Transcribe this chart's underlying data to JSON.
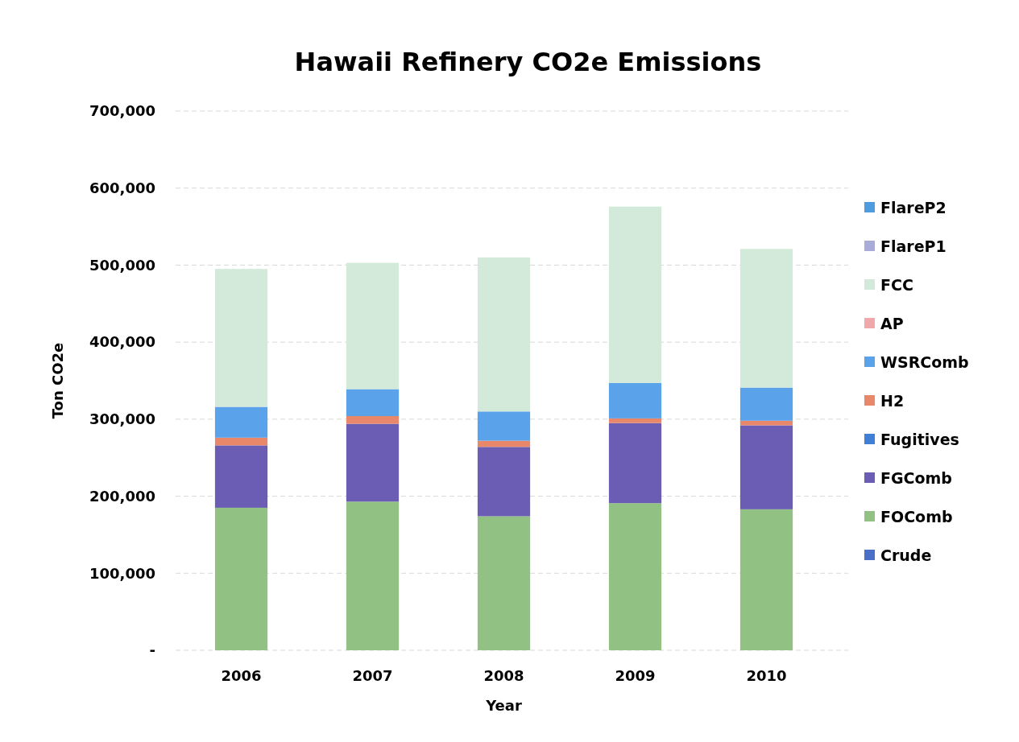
{
  "chart_data": {
    "type": "bar",
    "title": "Hawaii Refinery CO2e Emissions",
    "xlabel": "Year",
    "ylabel": "Ton CO2e",
    "categories": [
      "2006",
      "2007",
      "2008",
      "2009",
      "2010"
    ],
    "stacked": true,
    "ylim": [
      0,
      700000
    ],
    "yticks": [
      {
        "value": 0,
        "label": "-"
      },
      {
        "value": 100000,
        "label": "100,000"
      },
      {
        "value": 200000,
        "label": "200,000"
      },
      {
        "value": 300000,
        "label": "300,000"
      },
      {
        "value": 400000,
        "label": "400,000"
      },
      {
        "value": 500000,
        "label": "500,000"
      },
      {
        "value": 600000,
        "label": "600,000"
      },
      {
        "value": 700000,
        "label": "700,000"
      }
    ],
    "grid": "y",
    "legend": "right",
    "series": [
      {
        "name": "Crude",
        "color": "#4a6fc9",
        "values": [
          0,
          0,
          0,
          0,
          0
        ]
      },
      {
        "name": "FOComb",
        "color": "#92c184",
        "values": [
          185000,
          193000,
          174000,
          191000,
          183000
        ]
      },
      {
        "name": "FGComb",
        "color": "#6a5db3",
        "values": [
          81000,
          101000,
          90000,
          104000,
          109000
        ]
      },
      {
        "name": "Fugitives",
        "color": "#3f7fd6",
        "values": [
          0,
          0,
          0,
          0,
          0
        ]
      },
      {
        "name": "H2",
        "color": "#e8876a",
        "values": [
          10000,
          10000,
          8000,
          6000,
          6000
        ]
      },
      {
        "name": "WSRComb",
        "color": "#5aa2ea",
        "values": [
          40000,
          35000,
          38000,
          46000,
          43000
        ]
      },
      {
        "name": "AP",
        "color": "#f0a8ab",
        "values": [
          0,
          0,
          0,
          0,
          0
        ]
      },
      {
        "name": "FCC",
        "color": "#d3eadb",
        "values": [
          179000,
          164000,
          200000,
          229000,
          180000
        ]
      },
      {
        "name": "FlareP1",
        "color": "#a9acd8",
        "values": [
          0,
          0,
          0,
          0,
          0
        ]
      },
      {
        "name": "FlareP2",
        "color": "#4f9be0",
        "values": [
          0,
          0,
          0,
          0,
          0
        ]
      }
    ]
  }
}
